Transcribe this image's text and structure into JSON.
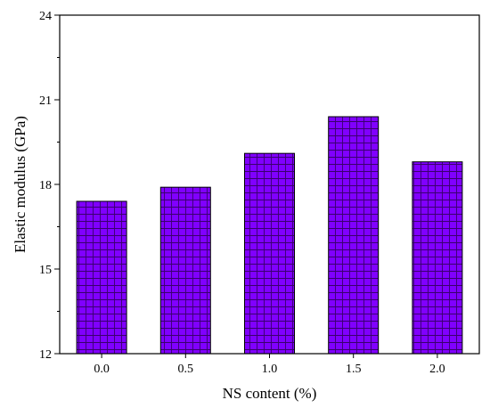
{
  "chart_data": {
    "type": "bar",
    "title": "",
    "xlabel": "NS content (%)",
    "ylabel": "Elastic modulus (GPa)",
    "categories": [
      "0.0",
      "0.5",
      "1.0",
      "1.5",
      "2.0"
    ],
    "values": [
      17.4,
      17.9,
      19.1,
      20.4,
      18.8
    ],
    "ylim": [
      12,
      24
    ],
    "yticks": [
      "12",
      "15",
      "18",
      "21",
      "24"
    ],
    "grid": false,
    "legend": "none",
    "bar_color": "#8000ff",
    "hatch_color": "#3a006e",
    "hatch": "crosshatch"
  }
}
